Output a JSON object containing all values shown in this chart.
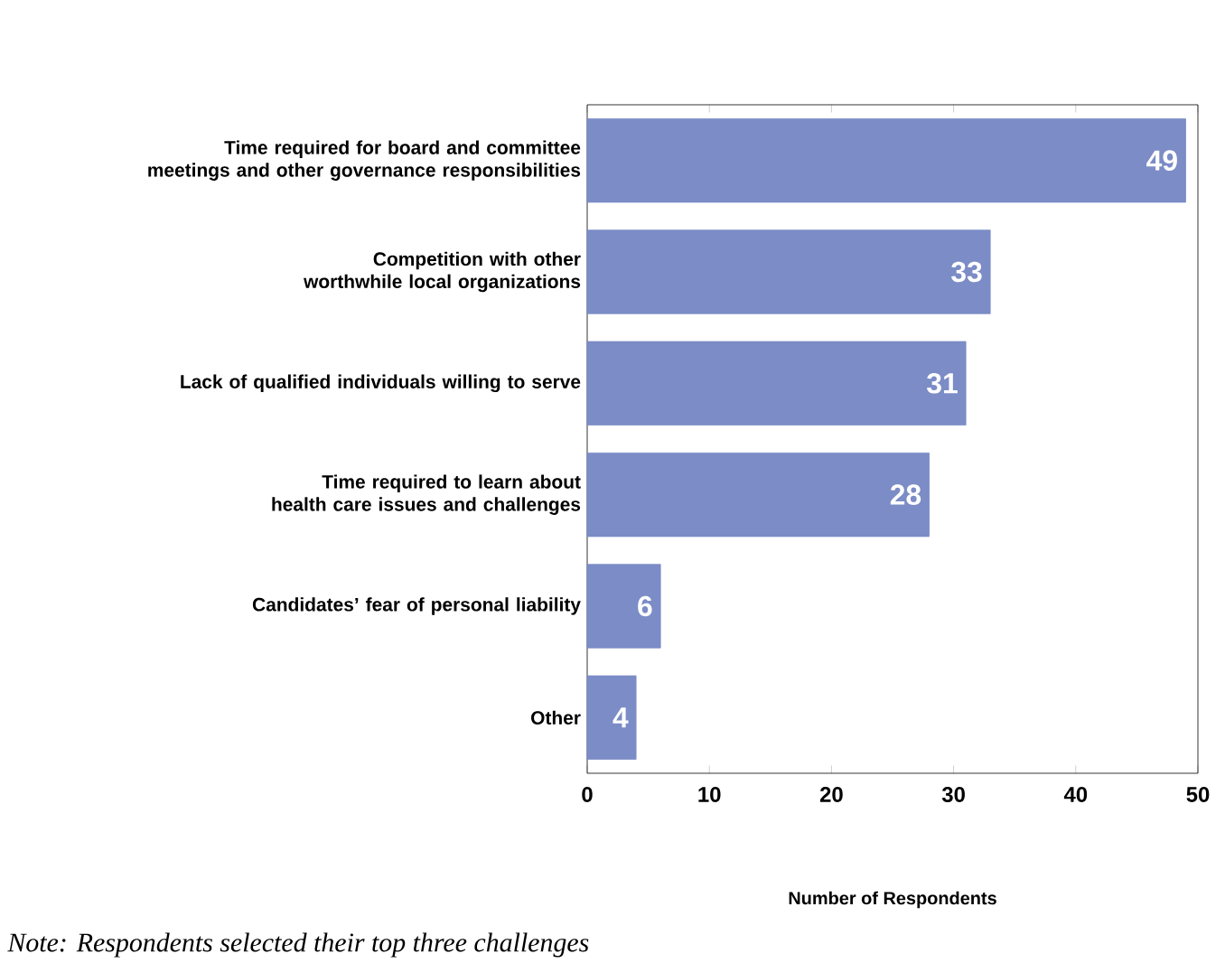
{
  "chart_data": {
    "type": "bar",
    "orientation": "horizontal",
    "categories": [
      "Time required for board and committee meetings and other governance responsibilities",
      "Competition with other worthwhile local organizations",
      "Lack of qualified individuals willing to serve",
      "Time required to learn about health care issues and challenges",
      "Candidates’ fear of personal liability",
      "Other"
    ],
    "values": [
      49,
      33,
      31,
      28,
      6,
      4
    ],
    "color": "#7b8cc6",
    "data_labels": true,
    "xlim": [
      0,
      50
    ],
    "xticks": [
      0,
      10,
      20,
      30,
      40,
      50
    ],
    "xlabel": "Number of Respondents",
    "annotations": [
      "Note: Respondents selected their top three challenges"
    ]
  }
}
